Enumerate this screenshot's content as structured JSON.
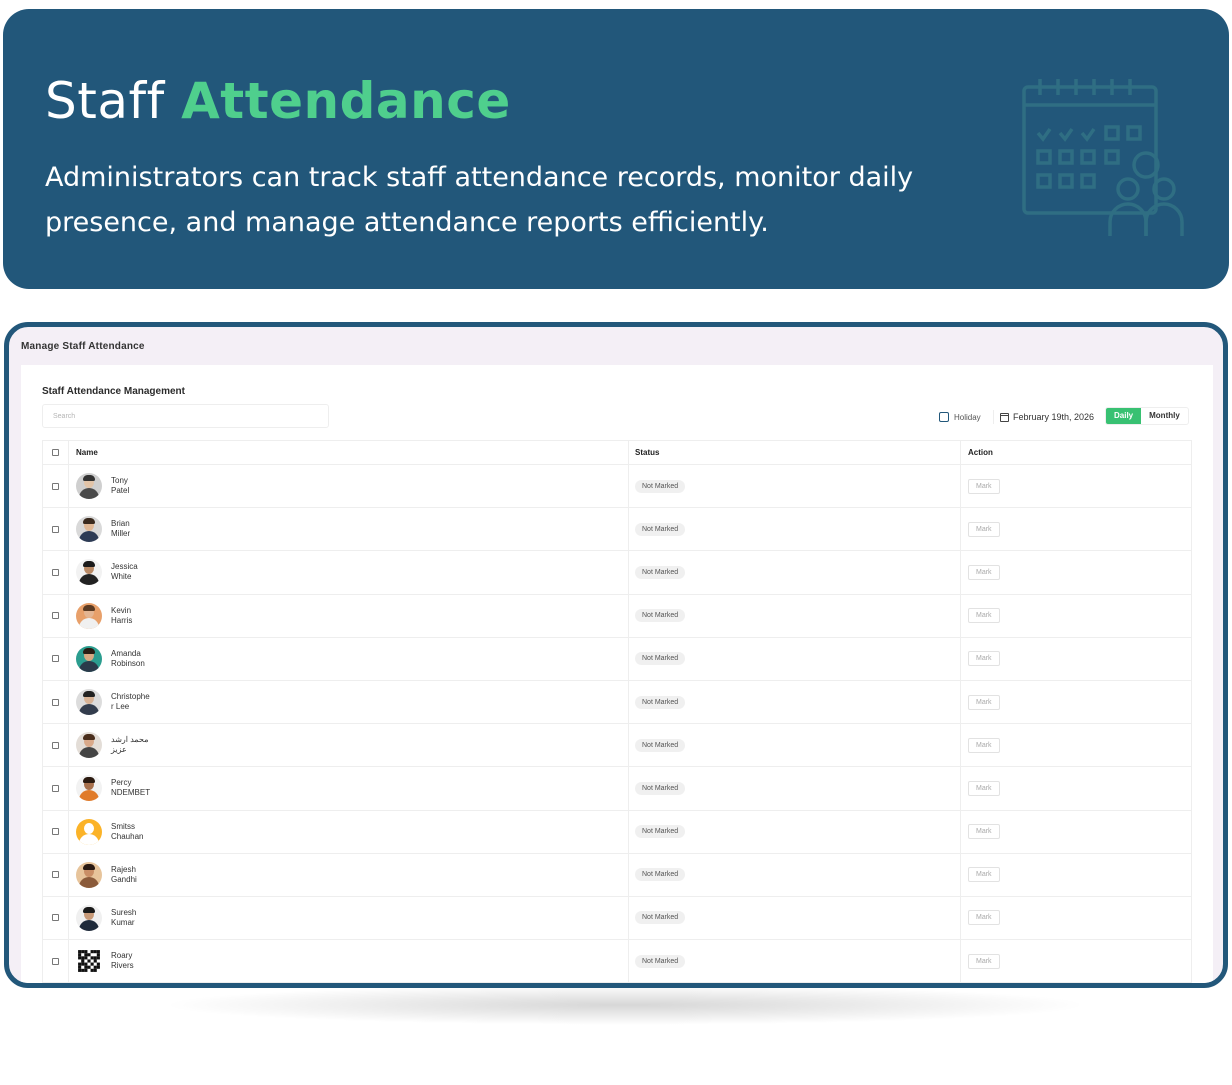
{
  "hero": {
    "title_plain": "Staff",
    "title_accent": "Attendance",
    "description": "Administrators can track staff attendance records, monitor daily presence, and manage attendance reports efficiently."
  },
  "app": {
    "page_header": "Manage Staff Attendance",
    "card_title": "Staff Attendance Management",
    "search_placeholder": "Search",
    "holiday_label": "Holiday",
    "date_label": "February 19th, 2026",
    "view_daily": "Daily",
    "view_monthly": "Monthly",
    "columns": {
      "name": "Name",
      "status": "Status",
      "action": "Action"
    },
    "rows": [
      {
        "first": "Tony",
        "last": "Patel",
        "status": "Not Marked",
        "action": "Mark",
        "avatar": "man-glasses"
      },
      {
        "first": "Brian",
        "last": "Miller",
        "status": "Not Marked",
        "action": "Mark",
        "avatar": "man-suit"
      },
      {
        "first": "Jessica",
        "last": "White",
        "status": "Not Marked",
        "action": "Mark",
        "avatar": "man-dark"
      },
      {
        "first": "Kevin",
        "last": "Harris",
        "status": "Not Marked",
        "action": "Mark",
        "avatar": "man-orange"
      },
      {
        "first": "Amanda",
        "last": "Robinson",
        "status": "Not Marked",
        "action": "Mark",
        "avatar": "man-teal"
      },
      {
        "first": "Christophe",
        "last": "r Lee",
        "status": "Not Marked",
        "action": "Mark",
        "avatar": "man-grey"
      },
      {
        "first": "محمد ارشد",
        "last": "عزیز",
        "status": "Not Marked",
        "action": "Mark",
        "avatar": "woman-glasses"
      },
      {
        "first": "Percy",
        "last": "NDEMBET",
        "status": "Not Marked",
        "action": "Mark",
        "avatar": "woman-orange"
      },
      {
        "first": "Smitss",
        "last": "Chauhan",
        "status": "Not Marked",
        "action": "Mark",
        "avatar": "placeholder-orange"
      },
      {
        "first": "Rajesh",
        "last": "Gandhi",
        "status": "Not Marked",
        "action": "Mark",
        "avatar": "man-beige"
      },
      {
        "first": "Suresh",
        "last": "Kumar",
        "status": "Not Marked",
        "action": "Mark",
        "avatar": "man-dark-suit"
      },
      {
        "first": "Roary",
        "last": "Rivers",
        "status": "Not Marked",
        "action": "Mark",
        "avatar": "qr-code"
      }
    ]
  },
  "colors": {
    "banner": "#22577a",
    "accent_green": "#4fcf8d",
    "daily_active": "#38c172"
  }
}
